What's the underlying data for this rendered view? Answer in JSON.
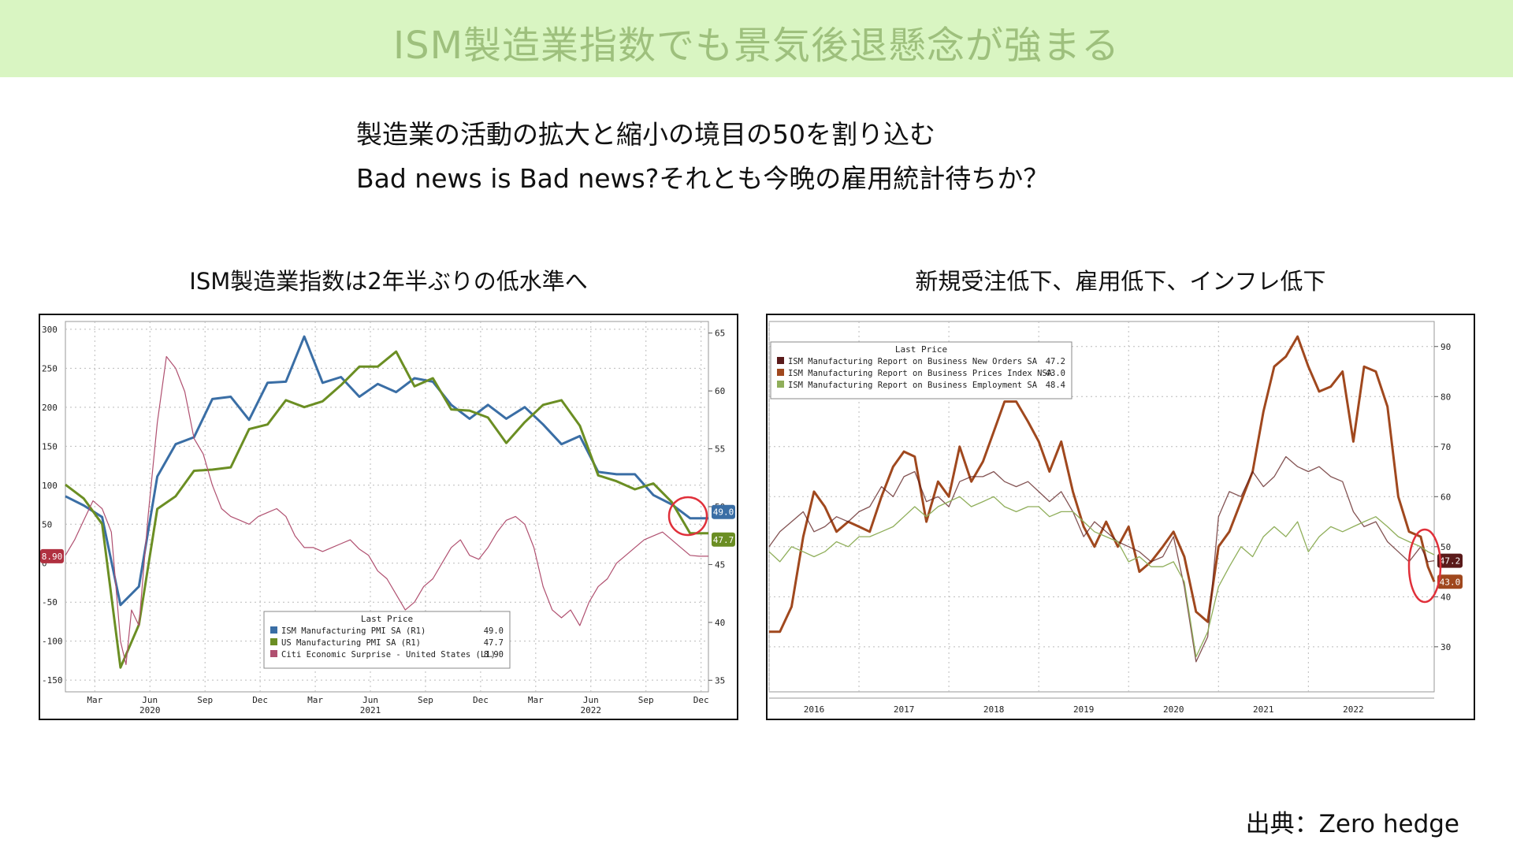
{
  "header": {
    "title": "ISM製造業指数でも景気後退懸念が強まる"
  },
  "subtitle": {
    "line1": "製造業の活動の拡大と縮小の境目の50を割り込む",
    "line2": "Bad news is Bad news?それとも今晩の雇用統計待ちか？"
  },
  "source": "出典：Zero hedge",
  "colors": {
    "banner_bg": "#d9f5c2",
    "banner_text": "#9ec07d",
    "ism_pmi": "#3a6ea5",
    "us_pmi": "#6b8e23",
    "citi": "#b05070",
    "new_orders": "#5a1a1a",
    "prices": "#a0481e",
    "employment": "#8fae5a",
    "highlight_circle": "#e0303a"
  },
  "chart_data": [
    {
      "type": "line",
      "title": "ISM製造業指数は2年半ぶりの低水準へ",
      "x_tick_labels": [
        "Mar",
        "Jun",
        "Sep",
        "Dec",
        "Mar",
        "Jun",
        "Sep",
        "Dec",
        "Mar",
        "Jun",
        "Sep",
        "Dec"
      ],
      "x_year_labels": [
        {
          "label": "2020",
          "at": "Jun"
        },
        {
          "label": "2021",
          "at": "Jun"
        },
        {
          "label": "2022",
          "at": "Jun"
        }
      ],
      "x_range_months": [
        0,
        35
      ],
      "left_axis": {
        "ticks": [
          300,
          250,
          200,
          150,
          100,
          50,
          0,
          -50,
          -100,
          -150
        ],
        "range": [
          -165,
          310
        ]
      },
      "right_axis": {
        "ticks": [
          65,
          60,
          55,
          50,
          45,
          40,
          35
        ],
        "range": [
          34,
          66
        ]
      },
      "legend": {
        "title": "Last Price",
        "placement": "bottom-center",
        "entries": [
          {
            "name": "ISM Manufacturing PMI SA  (R1)",
            "value": "49.0",
            "color": "#3a6ea5"
          },
          {
            "name": "US Manufacturing PMI SA  (R1)",
            "value": "47.7",
            "color": "#6b8e23"
          },
          {
            "name": "Citi Economic Surprise - United States  (L1)",
            "value": "8.90",
            "color": "#b05070"
          }
        ]
      },
      "last_value_tags": {
        "left": "8.90",
        "right": [
          "49.0",
          "47.7"
        ]
      },
      "series": [
        {
          "name": "ISM Manufacturing PMI SA  (R1)",
          "axis": "right",
          "color": "#3a6ea5",
          "x": [
            0,
            1,
            2,
            3,
            4,
            5,
            6,
            7,
            8,
            9,
            10,
            11,
            12,
            13,
            14,
            15,
            16,
            17,
            18,
            19,
            20,
            21,
            22,
            23,
            24,
            25,
            26,
            27,
            28,
            29,
            30,
            31,
            32,
            33,
            34,
            35
          ],
          "values": [
            50.9,
            50.1,
            49.1,
            41.5,
            43.1,
            52.6,
            55.4,
            56.0,
            59.3,
            59.5,
            57.5,
            60.7,
            60.8,
            64.7,
            60.7,
            61.2,
            59.5,
            60.6,
            59.9,
            61.1,
            60.8,
            58.8,
            57.6,
            58.8,
            57.6,
            58.6,
            57.1,
            55.4,
            56.1,
            53.0,
            52.8,
            52.8,
            51.0,
            50.2,
            49.0,
            49.0
          ]
        },
        {
          "name": "US Manufacturing PMI SA  (R1)",
          "axis": "right",
          "color": "#6b8e23",
          "x": [
            0,
            1,
            2,
            3,
            4,
            5,
            6,
            7,
            8,
            9,
            10,
            11,
            12,
            13,
            14,
            15,
            16,
            17,
            18,
            19,
            20,
            21,
            22,
            23,
            24,
            25,
            26,
            27,
            28,
            29,
            30,
            31,
            32,
            33,
            34,
            35
          ],
          "values": [
            51.9,
            50.7,
            48.5,
            36.1,
            39.8,
            49.8,
            50.9,
            53.1,
            53.2,
            53.4,
            56.7,
            57.1,
            59.2,
            58.6,
            59.1,
            60.5,
            62.1,
            62.1,
            63.4,
            60.4,
            61.1,
            58.4,
            58.3,
            57.7,
            55.5,
            57.3,
            58.8,
            59.2,
            57.0,
            52.7,
            52.2,
            51.5,
            52.0,
            50.4,
            47.7,
            47.7
          ]
        },
        {
          "name": "Citi Economic Surprise - United States  (L1)",
          "axis": "left",
          "color": "#b05070",
          "x": [
            0,
            0.5,
            1,
            1.5,
            2,
            2.5,
            3,
            3.3,
            3.6,
            4,
            4.5,
            5,
            5.5,
            6,
            6.5,
            7,
            7.5,
            8,
            8.5,
            9,
            9.5,
            10,
            10.5,
            11,
            11.5,
            12,
            12.5,
            13,
            13.5,
            14,
            14.5,
            15,
            15.5,
            16,
            16.5,
            17,
            17.5,
            18,
            18.5,
            19,
            19.5,
            20,
            20.5,
            21,
            21.5,
            22,
            22.5,
            23,
            23.5,
            24,
            24.5,
            25,
            25.5,
            26,
            26.5,
            27,
            27.5,
            28,
            28.5,
            29,
            29.5,
            30,
            30.5,
            31,
            31.5,
            32,
            32.5,
            33,
            33.5,
            34,
            34.5,
            35
          ],
          "values": [
            10,
            30,
            55,
            80,
            70,
            40,
            -100,
            -130,
            -60,
            -80,
            60,
            180,
            265,
            250,
            220,
            160,
            140,
            100,
            70,
            60,
            55,
            50,
            60,
            65,
            70,
            60,
            35,
            20,
            20,
            15,
            20,
            25,
            30,
            18,
            10,
            -10,
            -20,
            -40,
            -60,
            -50,
            -30,
            -20,
            0,
            20,
            30,
            10,
            5,
            20,
            40,
            55,
            60,
            50,
            20,
            -30,
            -60,
            -70,
            -60,
            -80,
            -50,
            -30,
            -20,
            0,
            10,
            20,
            30,
            35,
            40,
            30,
            20,
            10,
            8.9,
            8.9
          ]
        }
      ]
    },
    {
      "type": "line",
      "title": "新規受注低下、雇用低下、インフレ低下",
      "x_tick_labels": [
        "2016",
        "2017",
        "2018",
        "2019",
        "2020",
        "2021",
        "2022"
      ],
      "x_range_years": [
        2015.5,
        2022.9
      ],
      "right_axis": {
        "ticks": [
          90,
          80,
          70,
          60,
          50,
          40,
          30
        ],
        "range": [
          21,
          95
        ]
      },
      "legend": {
        "title": "Last Price",
        "placement": "top-left",
        "entries": [
          {
            "name": "ISM Manufacturing Report on Business New Orders SA",
            "value": "47.2",
            "color": "#5a1a1a"
          },
          {
            "name": "ISM Manufacturing Report on Business Prices Index NSA",
            "value": "43.0",
            "color": "#a0481e"
          },
          {
            "name": "ISM Manufacturing Report on Business Employment SA",
            "value": "48.4",
            "color": "#8fae5a"
          }
        ]
      },
      "last_value_tags": {
        "right": [
          "47.2",
          "43.0"
        ]
      },
      "series": [
        {
          "name": "ISM Manufacturing Report on Business Prices Index NSA",
          "color": "#a0481e",
          "x": [
            2015.5,
            2015.62,
            2015.75,
            2015.88,
            2016.0,
            2016.12,
            2016.25,
            2016.38,
            2016.5,
            2016.62,
            2016.75,
            2016.88,
            2017.0,
            2017.12,
            2017.25,
            2017.38,
            2017.5,
            2017.62,
            2017.75,
            2017.88,
            2018.0,
            2018.12,
            2018.25,
            2018.38,
            2018.5,
            2018.62,
            2018.75,
            2018.88,
            2019.0,
            2019.12,
            2019.25,
            2019.38,
            2019.5,
            2019.62,
            2019.75,
            2019.88,
            2020.0,
            2020.12,
            2020.25,
            2020.38,
            2020.5,
            2020.62,
            2020.75,
            2020.88,
            2021.0,
            2021.12,
            2021.25,
            2021.38,
            2021.5,
            2021.62,
            2021.75,
            2021.88,
            2022.0,
            2022.12,
            2022.25,
            2022.38,
            2022.5,
            2022.62,
            2022.75,
            2022.83,
            2022.9
          ],
          "values": [
            33,
            33,
            38,
            52,
            61,
            58,
            53,
            55,
            54,
            53,
            60,
            66,
            69,
            68,
            55,
            63,
            60,
            70,
            63,
            67,
            73,
            79,
            79,
            75,
            71,
            65,
            71,
            61,
            54,
            50,
            55,
            50,
            54,
            45,
            47,
            50,
            53,
            48,
            37,
            35,
            50,
            53,
            59,
            65,
            77,
            86,
            88,
            92,
            86,
            81,
            82,
            85,
            71,
            86,
            85,
            78,
            60,
            53,
            52,
            46,
            43
          ]
        },
        {
          "name": "ISM Manufacturing Report on Business New Orders SA",
          "color": "#5a1a1a",
          "x": [
            2015.5,
            2015.62,
            2015.75,
            2015.88,
            2016.0,
            2016.12,
            2016.25,
            2016.38,
            2016.5,
            2016.62,
            2016.75,
            2016.88,
            2017.0,
            2017.12,
            2017.25,
            2017.38,
            2017.5,
            2017.62,
            2017.75,
            2017.88,
            2018.0,
            2018.12,
            2018.25,
            2018.38,
            2018.5,
            2018.62,
            2018.75,
            2018.88,
            2019.0,
            2019.12,
            2019.25,
            2019.38,
            2019.5,
            2019.62,
            2019.75,
            2019.88,
            2020.0,
            2020.12,
            2020.25,
            2020.38,
            2020.5,
            2020.62,
            2020.75,
            2020.88,
            2021.0,
            2021.12,
            2021.25,
            2021.38,
            2021.5,
            2021.62,
            2021.75,
            2021.88,
            2022.0,
            2022.12,
            2022.25,
            2022.38,
            2022.5,
            2022.62,
            2022.75,
            2022.83,
            2022.9
          ],
          "values": [
            50,
            53,
            55,
            57,
            53,
            54,
            56,
            55,
            57,
            58,
            62,
            60,
            64,
            65,
            59,
            60,
            58,
            63,
            64,
            64,
            65,
            63,
            62,
            63,
            61,
            59,
            61,
            57,
            52,
            55,
            53,
            51,
            50,
            49,
            47,
            48,
            52,
            42,
            27,
            32,
            56,
            61,
            60,
            65,
            62,
            64,
            68,
            66,
            65,
            66,
            64,
            63,
            57,
            54,
            55,
            51,
            49,
            47,
            50,
            47,
            47.2
          ]
        },
        {
          "name": "ISM Manufacturing Report on Business Employment SA",
          "color": "#8fae5a",
          "x": [
            2015.5,
            2015.62,
            2015.75,
            2015.88,
            2016.0,
            2016.12,
            2016.25,
            2016.38,
            2016.5,
            2016.62,
            2016.75,
            2016.88,
            2017.0,
            2017.12,
            2017.25,
            2017.38,
            2017.5,
            2017.62,
            2017.75,
            2017.88,
            2018.0,
            2018.12,
            2018.25,
            2018.38,
            2018.5,
            2018.62,
            2018.75,
            2018.88,
            2019.0,
            2019.12,
            2019.25,
            2019.38,
            2019.5,
            2019.62,
            2019.75,
            2019.88,
            2020.0,
            2020.12,
            2020.25,
            2020.38,
            2020.5,
            2020.62,
            2020.75,
            2020.88,
            2021.0,
            2021.12,
            2021.25,
            2021.38,
            2021.5,
            2021.62,
            2021.75,
            2021.88,
            2022.0,
            2022.12,
            2022.25,
            2022.38,
            2022.5,
            2022.62,
            2022.75,
            2022.83,
            2022.9
          ],
          "values": [
            49,
            47,
            50,
            49,
            48,
            49,
            51,
            50,
            52,
            52,
            53,
            54,
            56,
            58,
            56,
            58,
            59,
            60,
            58,
            59,
            60,
            58,
            57,
            58,
            58,
            56,
            57,
            57,
            55,
            53,
            52,
            51,
            47,
            48,
            46,
            46,
            47,
            43,
            28,
            33,
            42,
            46,
            50,
            48,
            52,
            54,
            52,
            55,
            49,
            52,
            54,
            53,
            54,
            55,
            56,
            54,
            52,
            51,
            50,
            49,
            48.4
          ]
        }
      ]
    }
  ]
}
